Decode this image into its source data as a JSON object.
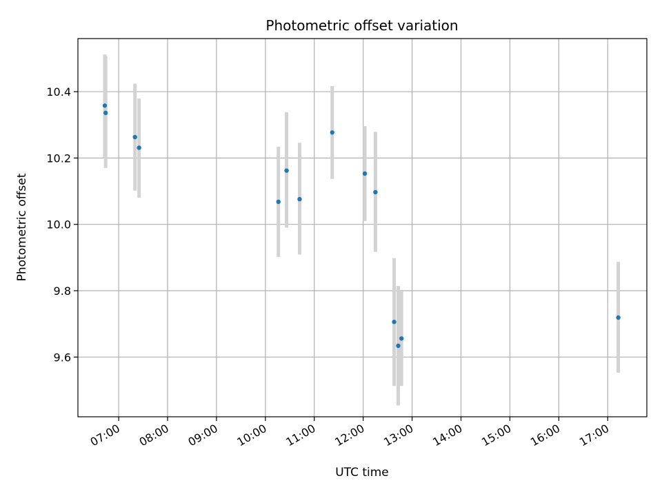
{
  "chart_data": {
    "type": "scatter",
    "title": "Photometric offset variation",
    "xlabel": "UTC time",
    "ylabel": "Photometric offset",
    "x_unit": "time of day (HH:MM, UTC)",
    "xlim": [
      "06:10",
      "17:48"
    ],
    "ylim": [
      9.42,
      10.56
    ],
    "x_ticks": [
      "07:00",
      "08:00",
      "09:00",
      "10:00",
      "11:00",
      "12:00",
      "13:00",
      "14:00",
      "15:00",
      "16:00",
      "17:00"
    ],
    "y_ticks": [
      9.6,
      9.8,
      10.0,
      10.2,
      10.4
    ],
    "y_tick_labels": [
      "9.6",
      "9.8",
      "10.0",
      "10.2",
      "10.4"
    ],
    "grid": true,
    "legend": "none",
    "series": [
      {
        "marker_color": "#1f77b4",
        "errorbar_color": "#d3d3d3",
        "points": [
          {
            "x": "06:43",
            "y": 10.358,
            "ylo": 10.2,
            "yhi": 10.512
          },
          {
            "x": "06:44",
            "y": 10.336,
            "ylo": 10.17,
            "yhi": 10.506
          },
          {
            "x": "07:20",
            "y": 10.263,
            "ylo": 10.102,
            "yhi": 10.424
          },
          {
            "x": "07:25",
            "y": 10.231,
            "ylo": 10.08,
            "yhi": 10.379
          },
          {
            "x": "10:16",
            "y": 10.068,
            "ylo": 9.902,
            "yhi": 10.234
          },
          {
            "x": "10:26",
            "y": 10.162,
            "ylo": 9.99,
            "yhi": 10.338
          },
          {
            "x": "10:42",
            "y": 10.076,
            "ylo": 9.909,
            "yhi": 10.246
          },
          {
            "x": "11:22",
            "y": 10.277,
            "ylo": 10.137,
            "yhi": 10.417
          },
          {
            "x": "12:02",
            "y": 10.153,
            "ylo": 10.01,
            "yhi": 10.296
          },
          {
            "x": "12:15",
            "y": 10.097,
            "ylo": 9.917,
            "yhi": 10.279
          },
          {
            "x": "12:38",
            "y": 9.706,
            "ylo": 9.513,
            "yhi": 9.898
          },
          {
            "x": "12:43",
            "y": 9.634,
            "ylo": 9.454,
            "yhi": 9.814
          },
          {
            "x": "12:47",
            "y": 9.656,
            "ylo": 9.513,
            "yhi": 9.8
          },
          {
            "x": "17:13",
            "y": 9.719,
            "ylo": 9.553,
            "yhi": 9.887
          }
        ]
      }
    ]
  }
}
